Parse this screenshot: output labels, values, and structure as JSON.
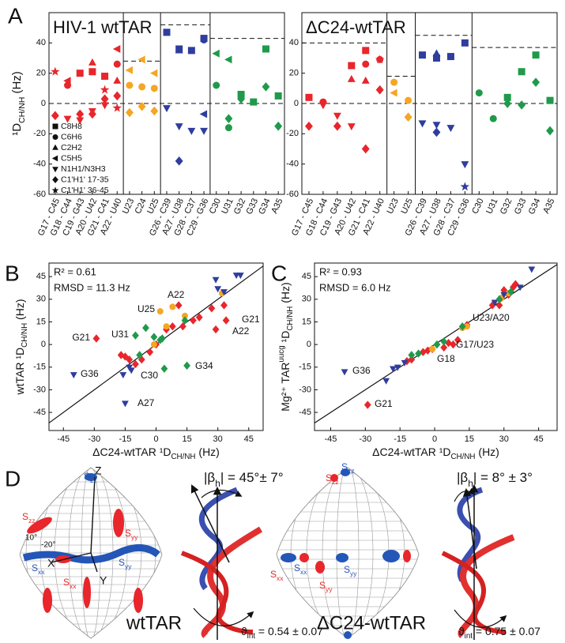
{
  "panel_labels": [
    "A",
    "B",
    "C",
    "D"
  ],
  "chart_data": [
    {
      "type": "category_scatter",
      "title": "HIV-1 wtTAR",
      "ylabel": [
        {
          "text": "¹D"
        },
        {
          "text": "CH/NH",
          "sub": true
        },
        {
          "text": " (Hz)"
        }
      ],
      "categories": [
        "G17 - C45",
        "G18 - C44",
        "C19 - G43",
        "A20 - U42",
        "G21 - C41",
        "A22 - U40",
        "U23",
        "C24",
        "U25",
        "G26 - C39",
        "A27 - U38",
        "G28 - C37",
        "C29 - G36",
        "C30",
        "U31",
        "G32",
        "G33",
        "G34",
        "A35"
      ],
      "category_colors": [
        "#e8262b",
        "#e8262b",
        "#e8262b",
        "#e8262b",
        "#e8262b",
        "#e8262b",
        "#f5a623",
        "#f5a623",
        "#f5a623",
        "#2f3d9e",
        "#2f3d9e",
        "#2f3d9e",
        "#2f3d9e",
        "#1f9a4b",
        "#1f9a4b",
        "#1f9a4b",
        "#1f9a4b",
        "#1f9a4b",
        "#1f9a4b"
      ],
      "ylim": [
        -60,
        60
      ],
      "yticks": [
        -60,
        -40,
        -20,
        0,
        20,
        40
      ],
      "zero_line": true,
      "legend": true,
      "dashed_lines": [
        null,
        28,
        52,
        43
      ],
      "series": [
        {
          "name": "C8H8",
          "marker": "square",
          "values": [
            null,
            null,
            20,
            21,
            18,
            null,
            null,
            null,
            null,
            47,
            36,
            35,
            43,
            null,
            null,
            6,
            1,
            36,
            5
          ]
        },
        {
          "name": "C6H6",
          "marker": "circle",
          "values": [
            null,
            12,
            null,
            null,
            null,
            26,
            12,
            11,
            10,
            null,
            null,
            null,
            42,
            12,
            -16,
            null,
            null,
            null,
            null
          ]
        },
        {
          "name": "C2H2",
          "marker": "up",
          "values": [
            null,
            null,
            null,
            27,
            null,
            15,
            null,
            null,
            null,
            null,
            35,
            null,
            null,
            null,
            null,
            null,
            null,
            null,
            null
          ]
        },
        {
          "name": "C5H5",
          "marker": "left",
          "values": [
            null,
            15,
            null,
            null,
            null,
            36,
            22,
            29,
            20,
            null,
            null,
            null,
            -7,
            33,
            29,
            null,
            null,
            null,
            null
          ]
        },
        {
          "name": "N1H1/N3H3",
          "marker": "down",
          "values": [
            null,
            -10,
            -11,
            -5,
            -1,
            null,
            null,
            null,
            null,
            -3,
            -15,
            -18,
            -18,
            null,
            null,
            null,
            null,
            null,
            null
          ]
        },
        {
          "name": "C1'H1' 17-35",
          "marker": "diamond",
          "values": [
            -8,
            null,
            -7,
            -7,
            3,
            5,
            -6,
            -2,
            -5,
            null,
            -38,
            null,
            null,
            null,
            -10,
            3,
            null,
            11,
            -15
          ]
        },
        {
          "name": "C1'H1' 36-45",
          "marker": "star",
          "values": [
            21,
            null,
            null,
            null,
            9,
            -3,
            null,
            null,
            null,
            null,
            null,
            null,
            null,
            null,
            null,
            null,
            null,
            null,
            null
          ]
        }
      ]
    },
    {
      "type": "category_scatter",
      "title": "ΔC24-wtTAR",
      "categories": [
        "G17 - C45",
        "G18 - C44",
        "C19 - G43",
        "A20 - U42",
        "G21 - C41",
        "A22 - U40",
        "U23",
        "U25",
        "G26 - C39",
        "A27 - U38",
        "G28 - C37",
        "C29 - G36",
        "C30",
        "U31",
        "G32",
        "G33",
        "G34",
        "A35"
      ],
      "category_colors": [
        "#e8262b",
        "#e8262b",
        "#e8262b",
        "#e8262b",
        "#e8262b",
        "#e8262b",
        "#f5a623",
        "#f5a623",
        "#2f3d9e",
        "#2f3d9e",
        "#2f3d9e",
        "#2f3d9e",
        "#1f9a4b",
        "#1f9a4b",
        "#1f9a4b",
        "#1f9a4b",
        "#1f9a4b",
        "#1f9a4b"
      ],
      "ylim": [
        -60,
        60
      ],
      "yticks": [
        -60,
        -40,
        -20,
        0,
        20,
        40
      ],
      "zero_line": true,
      "legend": false,
      "dashed_lines": [
        40,
        18,
        45,
        37
      ],
      "series": [
        {
          "name": "C8H8",
          "marker": "square",
          "values": [
            4,
            null,
            null,
            25,
            35,
            null,
            null,
            null,
            32,
            30,
            31,
            40,
            null,
            null,
            4,
            21,
            32,
            2
          ]
        },
        {
          "name": "C6H6",
          "marker": "circle",
          "values": [
            null,
            1,
            null,
            null,
            26,
            29,
            14,
            2,
            null,
            null,
            null,
            null,
            7,
            -10,
            null,
            null,
            null,
            null
          ]
        },
        {
          "name": "C2H2",
          "marker": "up",
          "values": [
            null,
            null,
            null,
            16,
            15,
            null,
            null,
            null,
            null,
            33,
            null,
            null,
            null,
            null,
            null,
            null,
            null,
            null
          ]
        },
        {
          "name": "C5H5",
          "marker": "left",
          "values": [
            null,
            null,
            null,
            null,
            null,
            null,
            7,
            null,
            null,
            null,
            null,
            null,
            null,
            null,
            null,
            null,
            null,
            null
          ]
        },
        {
          "name": "N1H1/N3H3",
          "marker": "down",
          "values": [
            null,
            -1,
            -8,
            -15,
            null,
            null,
            null,
            null,
            -13,
            -14,
            -16,
            -40,
            null,
            null,
            null,
            null,
            null,
            null
          ]
        },
        {
          "name": "C1'H1' 17-35",
          "marker": "diamond",
          "values": [
            -15,
            null,
            -15,
            null,
            -30,
            9,
            null,
            -9,
            null,
            -19,
            null,
            null,
            null,
            null,
            0,
            -1,
            14,
            -18
          ]
        },
        {
          "name": "C1'H1' 36-45",
          "marker": "star",
          "values": [
            null,
            null,
            null,
            null,
            null,
            29,
            null,
            null,
            null,
            null,
            null,
            -55,
            null,
            null,
            null,
            null,
            null,
            null
          ]
        }
      ]
    },
    {
      "type": "scatter",
      "xlabel": [
        {
          "text": "ΔC24-wtTAR ¹D"
        },
        {
          "text": "CH/NH",
          "sub": true
        },
        {
          "text": " (Hz)"
        }
      ],
      "ylabel": [
        {
          "text": "wtTAR ¹D"
        },
        {
          "text": "CH/NH",
          "sub": true
        },
        {
          "text": " (Hz)"
        }
      ],
      "xlim": [
        -52,
        52
      ],
      "ylim": [
        -57,
        54
      ],
      "xticks": [
        -45,
        -30,
        -15,
        0,
        15,
        30,
        45
      ],
      "yticks": [
        -45,
        -30,
        -15,
        0,
        15,
        30,
        45
      ],
      "stats": [
        "R² =  0.61",
        "RMSD = 11.3 Hz"
      ],
      "annotations": [
        "G21",
        "A22",
        "U25",
        "G21",
        "A22",
        "U31",
        "C30",
        "G34",
        "G36",
        "A27"
      ],
      "groups": [
        {
          "color": "#e8262b",
          "marker": "diamond",
          "x": [
            -29,
            -17,
            -15,
            -13,
            -10,
            -7,
            -3,
            0,
            5,
            8,
            11,
            13,
            18,
            21,
            27,
            29,
            33,
            34
          ],
          "y": [
            4,
            -7,
            -8,
            -10,
            -13,
            -10,
            -5,
            0,
            10,
            12,
            26,
            12,
            16,
            18,
            24,
            10,
            26,
            16
          ]
        },
        {
          "color": "#f5a623",
          "marker": "circle",
          "x": [
            2,
            5,
            8,
            14,
            32,
            -1
          ],
          "y": [
            22,
            12,
            25,
            19,
            34,
            0
          ]
        },
        {
          "color": "#2f3d9e",
          "marker": "down",
          "x": [
            -40,
            -16,
            -15,
            -13,
            -12,
            29,
            30,
            39,
            41,
            33
          ],
          "y": [
            -20,
            -20,
            -39,
            -15,
            -17,
            43,
            37,
            46,
            46,
            35
          ]
        },
        {
          "color": "#1f9a4b",
          "marker": "diamond",
          "x": [
            -10,
            -8,
            -5,
            2,
            3,
            15,
            4,
            14,
            -1
          ],
          "y": [
            6,
            -7,
            11,
            3,
            4,
            -14,
            -16,
            16,
            5
          ]
        }
      ]
    },
    {
      "type": "scatter",
      "xlabel": [
        {
          "text": "ΔC24-wtTAR ¹D"
        },
        {
          "text": "CH/NH",
          "sub": true
        },
        {
          "text": " (Hz)"
        }
      ],
      "ylabel": [
        {
          "text": "Mg²⁺ TAR"
        },
        {
          "text": "uucg",
          "sup": true
        },
        {
          "text": " ¹D"
        },
        {
          "text": "CH/NH",
          "sub": true
        },
        {
          "text": " (Hz)"
        }
      ],
      "xlim": [
        -52,
        53
      ],
      "ylim": [
        -57,
        54
      ],
      "xticks": [
        -45,
        -30,
        -15,
        0,
        15,
        30,
        45
      ],
      "yticks": [
        -45,
        -30,
        -15,
        0,
        15,
        30,
        45
      ],
      "stats": [
        "R² =  0.93",
        "RMSD = 6.0 Hz"
      ],
      "annotations": [
        "G36",
        "G21",
        "U23/A20",
        "G17/U23",
        "G18"
      ],
      "groups": [
        {
          "color": "#e8262b",
          "marker": "diamond",
          "x": [
            -29,
            -12,
            -10,
            -5,
            -3,
            -1,
            4,
            6,
            8,
            14,
            25,
            28,
            30,
            32,
            34,
            35,
            10
          ],
          "y": [
            -40,
            -11,
            -10,
            -5,
            -4,
            -3,
            -2,
            1,
            0,
            13,
            26,
            26,
            36,
            33,
            38,
            40,
            3
          ]
        },
        {
          "color": "#f5a623",
          "marker": "circle",
          "x": [
            12,
            14,
            29,
            32,
            -1
          ],
          "y": [
            11,
            12,
            31,
            34,
            -3
          ]
        },
        {
          "color": "#2f3d9e",
          "marker": "down",
          "x": [
            -39,
            -21,
            -18,
            -16,
            -13,
            30,
            37,
            42,
            26
          ],
          "y": [
            -18,
            -24,
            -16,
            -15,
            -12,
            33,
            38,
            50,
            28
          ]
        },
        {
          "color": "#1f9a4b",
          "marker": "diamond",
          "x": [
            -10,
            -7,
            1,
            4,
            12,
            28,
            33
          ],
          "y": [
            -7,
            -6,
            0,
            2,
            12,
            30,
            35
          ]
        }
      ]
    }
  ],
  "panel_d": {
    "left": {
      "name": "wtTAR",
      "beta": [
        {
          "text": "|β"
        },
        {
          "text": "h",
          "sub": true
        },
        {
          "text": "| = 45°± 7°"
        }
      ],
      "theta": [
        {
          "text": "ϑ"
        },
        {
          "text": "int",
          "sub": true
        },
        {
          "text": " = 0.54 ± 0.07"
        }
      ],
      "axes": [
        "Z",
        "X",
        "Y"
      ],
      "angles": [
        "10°",
        "-20°"
      ],
      "tensors": [
        [
          {
            "text": "S"
          },
          {
            "text": "zz",
            "sub": true
          }
        ],
        [
          {
            "text": "S"
          },
          {
            "text": "zz",
            "sub": true
          }
        ],
        [
          {
            "text": "S"
          },
          {
            "text": "yy",
            "sub": true
          }
        ],
        [
          {
            "text": "S"
          },
          {
            "text": "xx",
            "sub": true
          }
        ],
        [
          {
            "text": "S"
          },
          {
            "text": "yy",
            "sub": true
          }
        ],
        [
          {
            "text": "S"
          },
          {
            "text": "xx",
            "sub": true
          }
        ]
      ]
    },
    "right": {
      "name": "ΔC24-wtTAR",
      "beta": [
        {
          "text": "|β"
        },
        {
          "text": "h",
          "sub": true
        },
        {
          "text": "| = 8° ± 3°"
        }
      ],
      "theta": [
        {
          "text": "ϑ"
        },
        {
          "text": "int",
          "sub": true
        },
        {
          "text": " = 0.75 ± 0.07"
        }
      ],
      "tensors": [
        [
          {
            "text": "S"
          },
          {
            "text": "zz",
            "sub": true
          }
        ],
        [
          {
            "text": "S"
          },
          {
            "text": "zz",
            "sub": true
          }
        ],
        [
          {
            "text": "S"
          },
          {
            "text": "xx",
            "sub": true
          }
        ],
        [
          {
            "text": "S"
          },
          {
            "text": "yy",
            "sub": true
          }
        ],
        [
          {
            "text": "S"
          },
          {
            "text": "xx",
            "sub": true
          }
        ],
        [
          {
            "text": "S"
          },
          {
            "text": "yy",
            "sub": true
          }
        ]
      ]
    }
  }
}
